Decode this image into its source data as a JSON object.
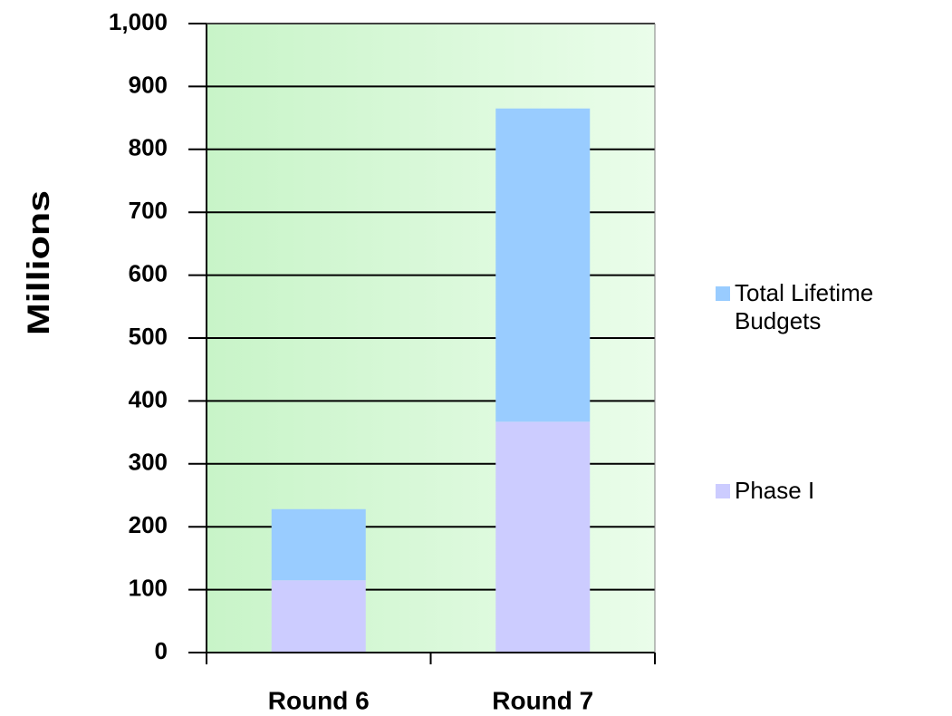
{
  "chart_data": {
    "type": "stacked_bar",
    "y_label": "Millions",
    "categories": [
      "Round 6",
      "Round 7"
    ],
    "series": [
      {
        "name": "Phase I",
        "color": "#ccccff",
        "values": [
          115,
          367
        ]
      },
      {
        "name": "Total Lifetime Budgets",
        "color": "#99ccff",
        "values": [
          113,
          498
        ]
      }
    ],
    "ylim": [
      0,
      1000
    ],
    "yticks": [
      0,
      100,
      200,
      300,
      400,
      500,
      600,
      700,
      800,
      900,
      {
        "value": 1000,
        "label": "1,000"
      }
    ],
    "grid": true,
    "legend": "right"
  }
}
